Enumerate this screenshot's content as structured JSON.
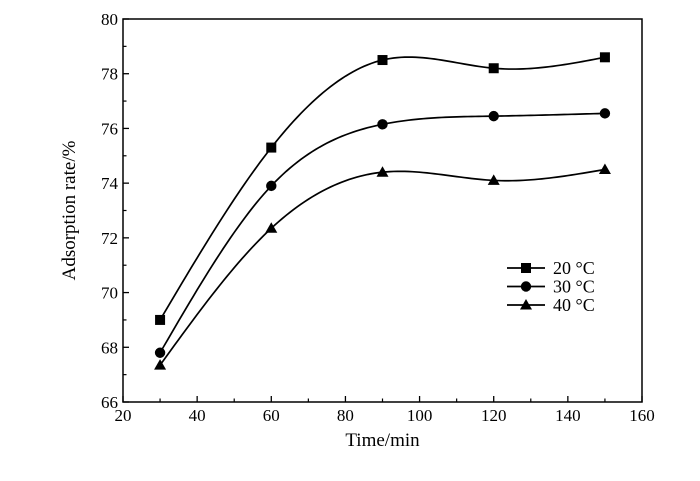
{
  "chart_data": {
    "type": "line",
    "title": "",
    "xlabel": "Time/min",
    "ylabel": "Adsorption rate/%",
    "xlim": [
      20,
      160
    ],
    "ylim": [
      66,
      80
    ],
    "x_ticks": [
      20,
      40,
      60,
      80,
      100,
      120,
      140,
      160
    ],
    "y_ticks": [
      66,
      68,
      70,
      72,
      74,
      76,
      78,
      80
    ],
    "grid": false,
    "legend_position": "right-middle",
    "x": [
      30,
      60,
      90,
      120,
      150
    ],
    "series": [
      {
        "name": "20 °C",
        "marker": "square",
        "values": [
          69.0,
          75.3,
          78.5,
          78.2,
          78.6
        ]
      },
      {
        "name": "30 °C",
        "marker": "circle",
        "values": [
          67.8,
          73.9,
          76.15,
          76.45,
          76.55
        ]
      },
      {
        "name": "40 °C",
        "marker": "triangle",
        "values": [
          67.35,
          72.35,
          74.4,
          74.1,
          74.5
        ]
      }
    ],
    "line_color": "#000000"
  }
}
